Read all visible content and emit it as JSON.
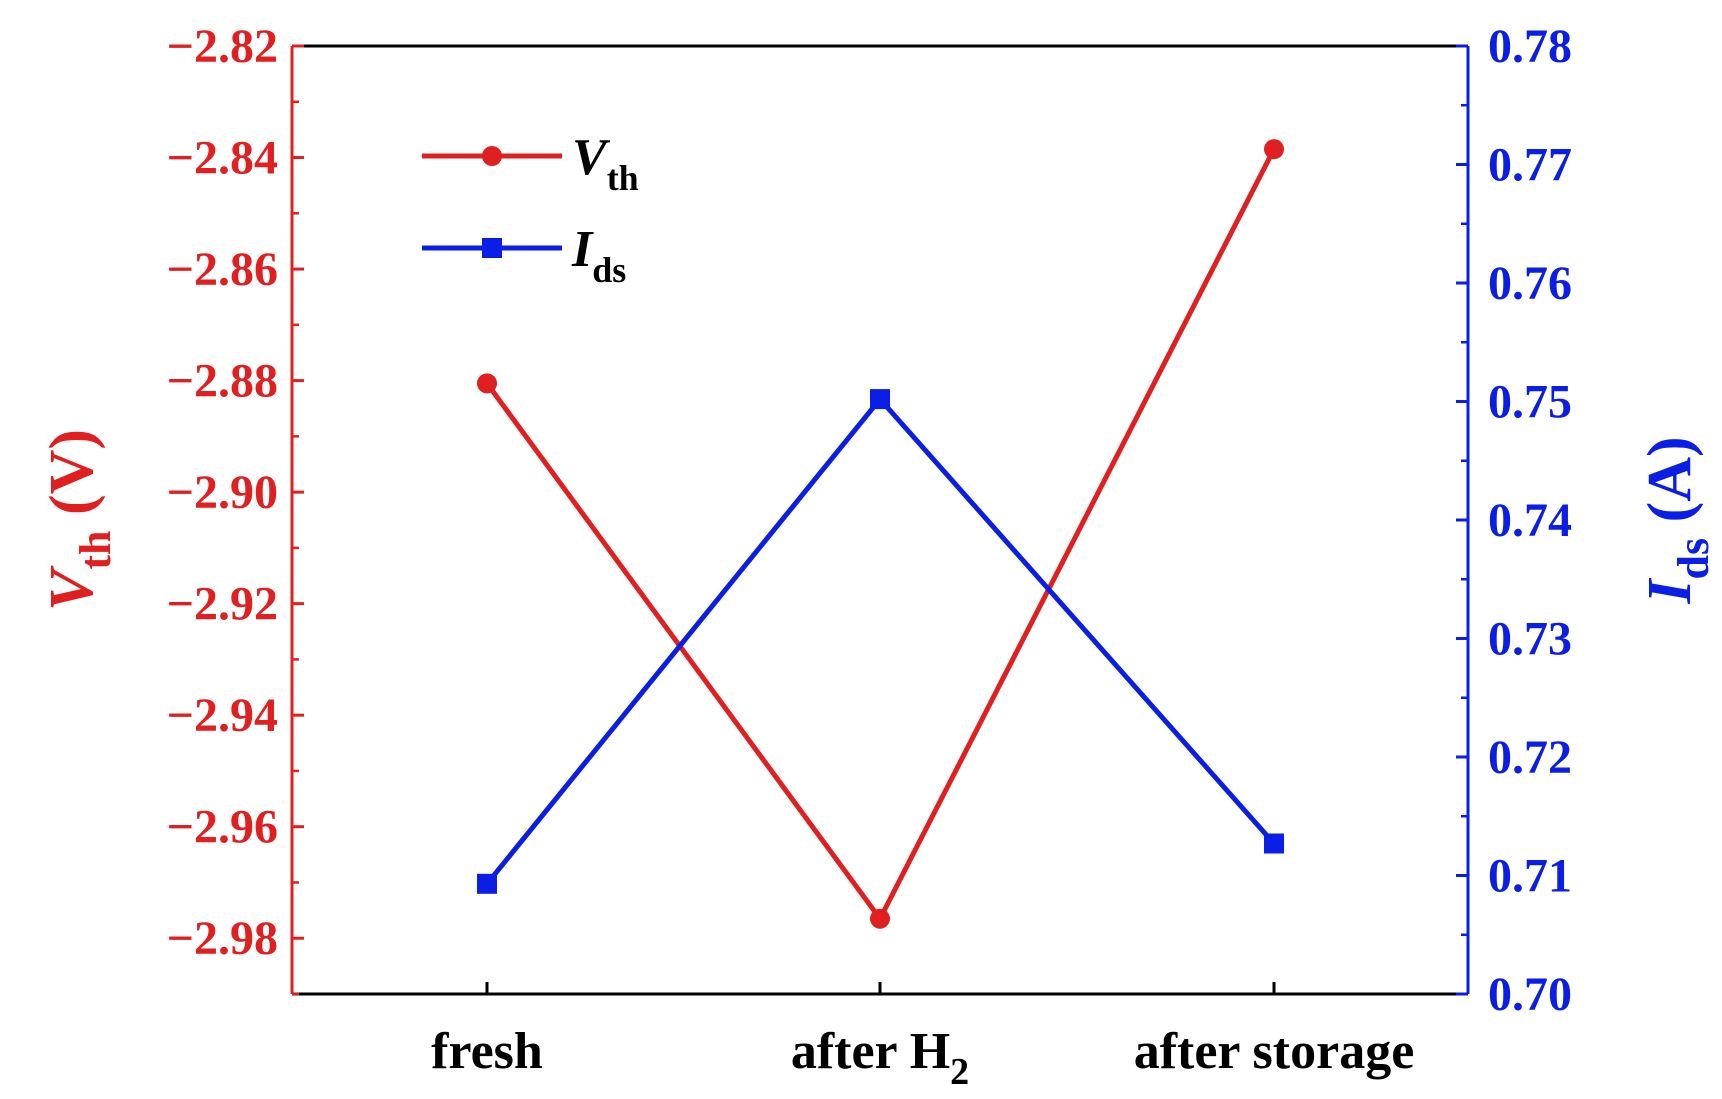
{
  "chart_data": {
    "type": "line",
    "categories": [
      "fresh",
      "after H",
      "after storage"
    ],
    "category_subscripts": [
      "",
      "2",
      ""
    ],
    "y_left": {
      "label_main": "V",
      "label_sub": "th",
      "label_unit": " (V)",
      "lim": [
        -2.99,
        -2.82
      ],
      "ticks": [
        -2.82,
        -2.84,
        -2.86,
        -2.88,
        -2.9,
        -2.92,
        -2.94,
        -2.96,
        -2.98
      ],
      "tick_labels": [
        "−2.82",
        "−2.84",
        "−2.86",
        "−2.88",
        "−2.90",
        "−2.92",
        "−2.94",
        "−2.96",
        "−2.98"
      ],
      "color": "#e02020"
    },
    "y_right": {
      "label_main": "I",
      "label_sub": "ds",
      "label_unit": " (A)",
      "lim": [
        0.7,
        0.78
      ],
      "ticks": [
        0.7,
        0.71,
        0.72,
        0.73,
        0.74,
        0.75,
        0.76,
        0.77,
        0.78
      ],
      "tick_labels": [
        "0.70",
        "0.71",
        "0.72",
        "0.73",
        "0.74",
        "0.75",
        "0.76",
        "0.77",
        "0.78"
      ],
      "color": "#0a1ee6"
    },
    "series": [
      {
        "name_main": "V",
        "name_sub": "th",
        "axis": "left",
        "marker": "circle",
        "color": "#e02020",
        "values": [
          -2.8805,
          -2.9765,
          -2.8385
        ]
      },
      {
        "name_main": "I",
        "name_sub": "ds",
        "axis": "right",
        "marker": "square",
        "color": "#0a1ee6",
        "values": [
          0.7093,
          0.7502,
          0.7127
        ]
      }
    ],
    "legend": {
      "position": "top-left"
    },
    "grid": false
  }
}
